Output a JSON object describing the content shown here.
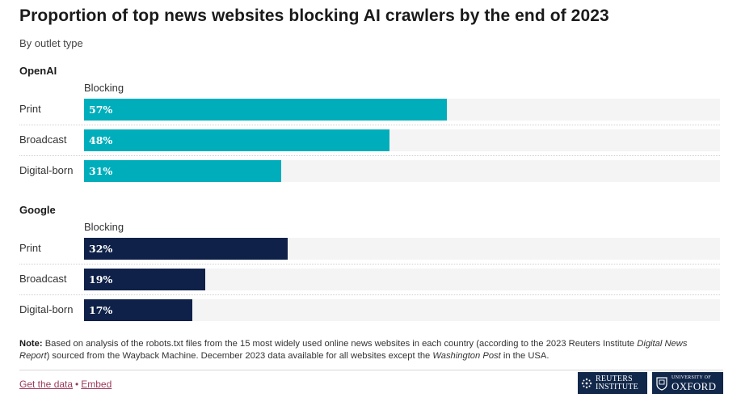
{
  "title": "Proportion of top news websites blocking AI crawlers by the end of 2023",
  "subtitle": "By outlet type",
  "colors": {
    "openai_bar": "#00aebb",
    "google_bar": "#0f2148",
    "track": "#f4f4f4"
  },
  "chart_data": [
    {
      "type": "bar",
      "orientation": "horizontal",
      "section": "OpenAI",
      "column_header": "Blocking",
      "categories": [
        "Print",
        "Broadcast",
        "Digital-born"
      ],
      "values": [
        57,
        48,
        31
      ],
      "value_labels": [
        "57%",
        "48%",
        "31%"
      ],
      "unit": "%",
      "xlim": [
        0,
        100
      ],
      "color": "#00aebb"
    },
    {
      "type": "bar",
      "orientation": "horizontal",
      "section": "Google",
      "column_header": "Blocking",
      "categories": [
        "Print",
        "Broadcast",
        "Digital-born"
      ],
      "values": [
        32,
        19,
        17
      ],
      "value_labels": [
        "32%",
        "19%",
        "17%"
      ],
      "unit": "%",
      "xlim": [
        0,
        100
      ],
      "color": "#0f2148"
    }
  ],
  "note": {
    "label": "Note:",
    "part1": " Based on analysis of the robots.txt files from the 15 most widely used online news websites in each country (according to the 2023 Reuters Institute ",
    "italic1": "Digital News Report",
    "part2": ") sourced from the Wayback Machine. December 2023 data available for all websites except the ",
    "italic2": "Washington Post",
    "part3": " in the USA."
  },
  "footer": {
    "get_data": "Get the data",
    "separator": "•",
    "embed": "Embed"
  },
  "logos": {
    "reuters_line1": "REUTERS",
    "reuters_line2": "INSTITUTE",
    "oxford_line1": "UNIVERSITY OF",
    "oxford_line2": "OXFORD"
  }
}
